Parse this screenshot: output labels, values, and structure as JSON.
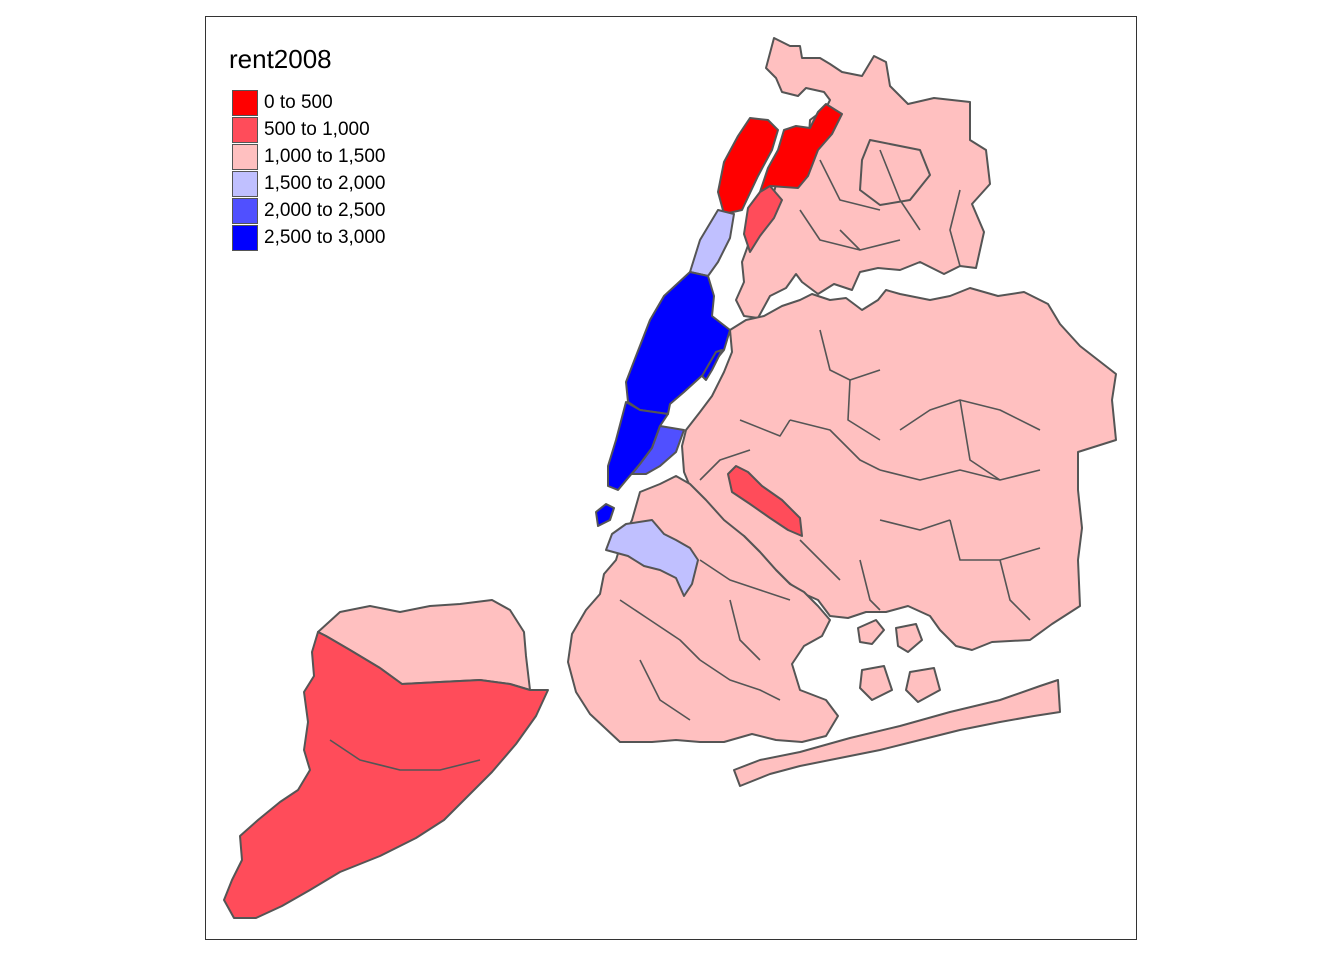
{
  "legend": {
    "title": "rent2008",
    "items": [
      {
        "label": "0 to 500",
        "color": "#FF0000"
      },
      {
        "label": "500 to 1,000",
        "color": "#FF4C5A"
      },
      {
        "label": "1,000 to 1,500",
        "color": "#FFC0C0"
      },
      {
        "label": "1,500 to 2,000",
        "color": "#C0C0FF"
      },
      {
        "label": "2,000 to 2,500",
        "color": "#5050FF"
      },
      {
        "label": "2,500 to 3,000",
        "color": "#0000FF"
      }
    ]
  },
  "colors": {
    "outline": "#555555",
    "frame": "#333333",
    "background": "#FFFFFF"
  }
}
